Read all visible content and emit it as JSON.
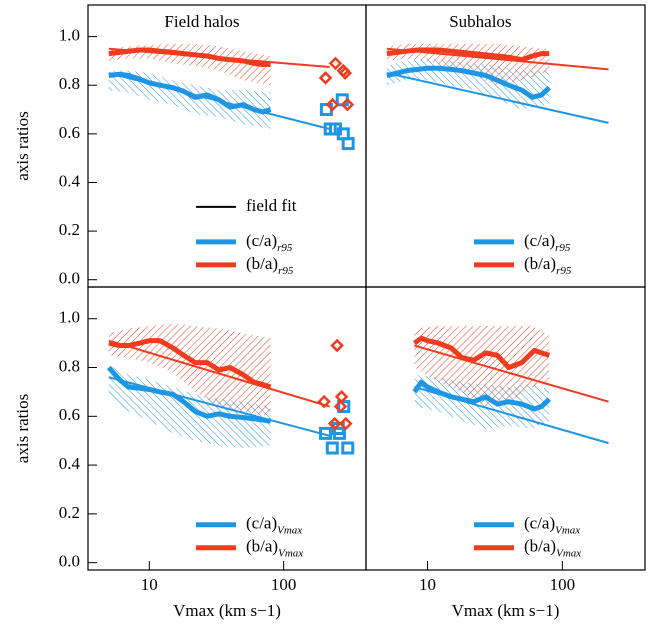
{
  "chart_data": [
    {
      "type": "line",
      "title": "Field halos",
      "ylabel": "axis ratios",
      "xlog": true,
      "xlim": [
        3.5,
        410
      ],
      "ylim": [
        -0.03,
        1.13
      ],
      "yticks": [
        {
          "value": 0,
          "label": "0.0"
        },
        0.2,
        0.4,
        0.6,
        0.8,
        {
          "value": 1,
          "label": "1.0"
        }
      ],
      "fit_legend": "field fit",
      "series": [
        {
          "name": "(c/a)",
          "subscript": "r95",
          "color": "#1e96e6",
          "x": [
            5,
            6,
            7,
            8.5,
            10,
            12,
            15,
            18,
            22,
            27,
            33,
            40,
            50,
            60,
            70,
            80
          ],
          "values": [
            0.84,
            0.845,
            0.84,
            0.825,
            0.81,
            0.8,
            0.79,
            0.775,
            0.75,
            0.76,
            0.74,
            0.71,
            0.72,
            0.7,
            0.69,
            0.7
          ],
          "band": {
            "x": [
              5,
              7,
              10,
              15,
              22,
              33,
              50,
              80
            ],
            "lower": [
              0.78,
              0.77,
              0.74,
              0.72,
              0.68,
              0.67,
              0.64,
              0.62
            ],
            "upper": [
              0.86,
              0.86,
              0.85,
              0.82,
              0.8,
              0.78,
              0.78,
              0.77
            ]
          },
          "fit": {
            "x": [
              5,
              220
            ],
            "values": [
              0.85,
              0.62
            ]
          },
          "points": {
            "x": [
              208,
              243,
              273,
              222,
              278,
              302
            ],
            "values": [
              0.7,
              0.62,
              0.74,
              0.62,
              0.6,
              0.56
            ]
          }
        },
        {
          "name": "(b/a)",
          "subscript": "r95",
          "color": "#f03c1e",
          "x": [
            5,
            6,
            7,
            8.5,
            10,
            12,
            15,
            18,
            22,
            27,
            33,
            40,
            50,
            60,
            70,
            80
          ],
          "values": [
            0.93,
            0.935,
            0.94,
            0.945,
            0.945,
            0.94,
            0.935,
            0.93,
            0.925,
            0.92,
            0.91,
            0.905,
            0.9,
            0.89,
            0.885,
            0.885
          ],
          "band": {
            "x": [
              5,
              7,
              10,
              15,
              22,
              33,
              50,
              80
            ],
            "lower": [
              0.9,
              0.91,
              0.91,
              0.89,
              0.88,
              0.86,
              0.82,
              0.8
            ],
            "upper": [
              0.95,
              0.96,
              0.965,
              0.97,
              0.97,
              0.96,
              0.94,
              0.92
            ]
          },
          "fit": {
            "x": [
              5,
              220
            ],
            "values": [
              0.95,
              0.875
            ]
          },
          "points": {
            "x": [
              205,
              243,
              278,
              287,
              298,
              231
            ],
            "values": [
              0.83,
              0.89,
              0.86,
              0.85,
              0.72,
              0.72
            ]
          }
        }
      ]
    },
    {
      "type": "line",
      "title": "Subhalos",
      "xlog": true,
      "xlim": [
        3.5,
        410
      ],
      "ylim": [
        -0.03,
        1.13
      ],
      "series": [
        {
          "name": "(c/a)",
          "subscript": "r95",
          "color": "#1e96e6",
          "x": [
            5,
            6,
            7,
            8.5,
            10,
            12,
            15,
            18,
            22,
            27,
            33,
            40,
            50,
            60,
            70,
            80
          ],
          "values": [
            0.84,
            0.85,
            0.86,
            0.865,
            0.87,
            0.87,
            0.865,
            0.86,
            0.85,
            0.84,
            0.82,
            0.8,
            0.78,
            0.75,
            0.76,
            0.79
          ],
          "band": {
            "x": [
              5,
              7,
              10,
              15,
              22,
              33,
              50,
              80
            ],
            "lower": [
              0.8,
              0.82,
              0.82,
              0.8,
              0.78,
              0.74,
              0.7,
              0.72
            ],
            "upper": [
              0.88,
              0.9,
              0.91,
              0.9,
              0.89,
              0.88,
              0.86,
              0.86
            ]
          },
          "fit": {
            "x": [
              5,
              220
            ],
            "values": [
              0.85,
              0.645
            ]
          }
        },
        {
          "name": "(b/a)",
          "subscript": "r95",
          "color": "#f03c1e",
          "x": [
            5,
            6,
            7,
            8.5,
            10,
            12,
            15,
            18,
            22,
            27,
            33,
            40,
            50,
            60,
            70,
            80
          ],
          "values": [
            0.93,
            0.935,
            0.94,
            0.945,
            0.945,
            0.945,
            0.94,
            0.935,
            0.93,
            0.925,
            0.92,
            0.915,
            0.905,
            0.92,
            0.93,
            0.93
          ],
          "band": {
            "x": [
              5,
              7,
              10,
              15,
              22,
              33,
              50,
              80
            ],
            "lower": [
              0.9,
              0.91,
              0.9,
              0.87,
              0.84,
              0.8,
              0.82,
              0.86
            ],
            "upper": [
              0.96,
              0.97,
              0.97,
              0.97,
              0.97,
              0.97,
              0.96,
              0.95
            ]
          },
          "fit": {
            "x": [
              5,
              220
            ],
            "values": [
              0.95,
              0.865
            ]
          }
        }
      ]
    },
    {
      "type": "line",
      "ylabel": "axis ratios",
      "xlabel": "Vmax (km s−1)",
      "xlog": true,
      "xlim": [
        3.5,
        410
      ],
      "ylim": [
        -0.03,
        1.13
      ],
      "xticks": [
        10,
        100
      ],
      "yticks": [
        {
          "value": 0,
          "label": "0.0"
        },
        0.2,
        0.4,
        0.6,
        0.8,
        {
          "value": 1,
          "label": "1.0"
        }
      ],
      "series": [
        {
          "name": "(c/a)",
          "subscript": "Vmax",
          "color": "#1e96e6",
          "x": [
            5,
            6,
            7,
            8.5,
            10,
            12,
            15,
            18,
            22,
            27,
            33,
            40,
            50,
            60,
            70,
            80
          ],
          "values": [
            0.8,
            0.75,
            0.72,
            0.715,
            0.71,
            0.7,
            0.69,
            0.66,
            0.62,
            0.6,
            0.61,
            0.6,
            0.595,
            0.59,
            0.585,
            0.58
          ],
          "band": {
            "x": [
              5,
              7,
              10,
              15,
              22,
              33,
              50,
              80
            ],
            "lower": [
              0.68,
              0.62,
              0.58,
              0.53,
              0.5,
              0.48,
              0.47,
              0.48
            ],
            "upper": [
              0.81,
              0.77,
              0.75,
              0.72,
              0.69,
              0.67,
              0.66,
              0.64
            ]
          },
          "fit": {
            "x": [
              5,
              220
            ],
            "values": [
              0.76,
              0.52
            ]
          },
          "points": {
            "x": [
              205,
              230,
              260,
              280,
              300,
              255
            ],
            "values": [
              0.53,
              0.47,
              0.53,
              0.64,
              0.47,
              0.55
            ]
          }
        },
        {
          "name": "(b/a)",
          "subscript": "Vmax",
          "color": "#f03c1e",
          "x": [
            5,
            6,
            7,
            8.5,
            10,
            12,
            15,
            18,
            22,
            27,
            33,
            40,
            50,
            60,
            70,
            80
          ],
          "values": [
            0.9,
            0.89,
            0.89,
            0.9,
            0.91,
            0.91,
            0.88,
            0.85,
            0.82,
            0.82,
            0.79,
            0.8,
            0.77,
            0.74,
            0.73,
            0.72
          ],
          "band": {
            "x": [
              5,
              7,
              10,
              15,
              22,
              33,
              50,
              80
            ],
            "lower": [
              0.85,
              0.84,
              0.82,
              0.78,
              0.7,
              0.64,
              0.62,
              0.6
            ],
            "upper": [
              0.94,
              0.96,
              0.97,
              0.98,
              0.97,
              0.96,
              0.94,
              0.92
            ]
          },
          "fit": {
            "x": [
              5,
              220
            ],
            "values": [
              0.91,
              0.64
            ]
          },
          "points": {
            "x": [
              200,
              250,
              270,
              240,
              290,
              265
            ],
            "values": [
              0.66,
              0.89,
              0.68,
              0.57,
              0.57,
              0.64
            ]
          }
        }
      ]
    },
    {
      "type": "line",
      "xlabel": "Vmax (km s−1)",
      "xlog": true,
      "xlim": [
        3.5,
        410
      ],
      "ylim": [
        -0.03,
        1.13
      ],
      "xticks": [
        10,
        100
      ],
      "series": [
        {
          "name": "(c/a)",
          "subscript": "Vmax",
          "color": "#1e96e6",
          "x": [
            8,
            9,
            10,
            12,
            15,
            18,
            22,
            27,
            33,
            40,
            50,
            62,
            70,
            80
          ],
          "values": [
            0.7,
            0.74,
            0.72,
            0.7,
            0.68,
            0.67,
            0.66,
            0.68,
            0.65,
            0.66,
            0.65,
            0.63,
            0.64,
            0.67
          ],
          "band": {
            "x": [
              8,
              12,
              18,
              27,
              40,
              60,
              80
            ],
            "lower": [
              0.64,
              0.62,
              0.58,
              0.55,
              0.56,
              0.55,
              0.58
            ],
            "upper": [
              0.77,
              0.76,
              0.74,
              0.73,
              0.72,
              0.73,
              0.71
            ]
          },
          "fit": {
            "x": [
              8,
              220
            ],
            "values": [
              0.72,
              0.49
            ]
          }
        },
        {
          "name": "(b/a)",
          "subscript": "Vmax",
          "color": "#f03c1e",
          "x": [
            8,
            9,
            10,
            12,
            15,
            18,
            22,
            27,
            33,
            40,
            50,
            62,
            70,
            80
          ],
          "values": [
            0.9,
            0.92,
            0.91,
            0.9,
            0.88,
            0.84,
            0.83,
            0.86,
            0.85,
            0.8,
            0.82,
            0.87,
            0.86,
            0.85
          ],
          "band": {
            "x": [
              8,
              12,
              18,
              27,
              40,
              60,
              80
            ],
            "lower": [
              0.8,
              0.74,
              0.7,
              0.64,
              0.66,
              0.72,
              0.74
            ],
            "upper": [
              0.96,
              0.97,
              0.97,
              0.97,
              0.97,
              0.97,
              0.93
            ]
          },
          "fit": {
            "x": [
              8,
              220
            ],
            "values": [
              0.89,
              0.66
            ]
          }
        }
      ]
    }
  ]
}
